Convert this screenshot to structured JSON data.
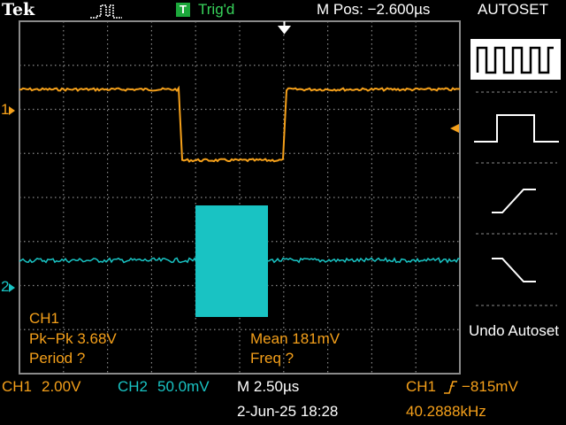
{
  "header": {
    "brand": "Tek",
    "trigger_badge": "T",
    "trigger_status": "Trig'd",
    "m_pos": "M Pos: −2.600µs",
    "autoset_title": "AUTOSET"
  },
  "channels": {
    "ch1_marker": "1",
    "ch2_marker": "2"
  },
  "measurements": {
    "channel": "CH1",
    "pkpk": "Pk−Pk 3.68V",
    "period": "Period ?",
    "mean": "Mean 181mV",
    "freq": "Freq ?"
  },
  "autoset_menu": {
    "options": [
      "square-wave-icon",
      "pulse-icon",
      "rising-edge-icon",
      "falling-edge-icon"
    ],
    "selected_index": 0,
    "undo_label": "Undo Autoset"
  },
  "status_bar": {
    "ch1_label": "CH1",
    "ch1_scale": "2.00V",
    "ch2_label": "CH2",
    "ch2_scale": "50.0mV",
    "timebase": "M 2.50µs",
    "trigger_src": "CH1",
    "trigger_level": "−815mV",
    "date": "2-Jun-25 18:28",
    "frequency": "40.2888kHz"
  },
  "colors": {
    "ch1": "#f5a01a",
    "ch2": "#19c3c3",
    "grid": "#8a8a8a",
    "trig_green": "#37d25a"
  }
}
